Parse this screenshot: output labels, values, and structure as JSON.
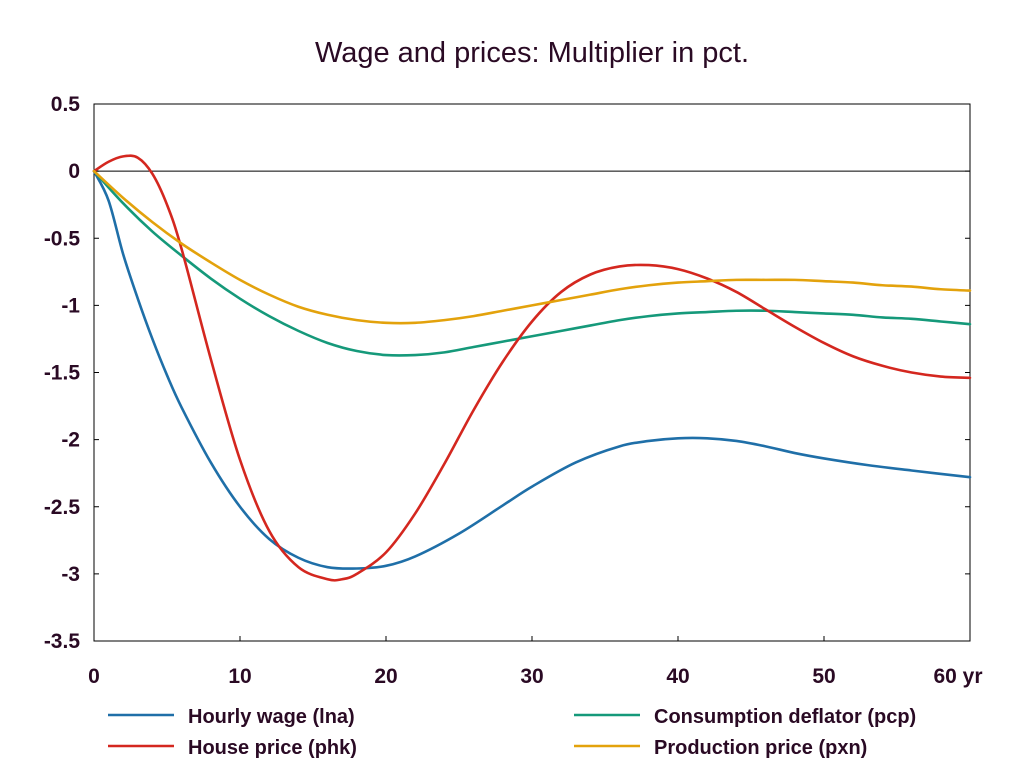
{
  "chart_data": {
    "type": "line",
    "title": "Wage and prices: Multiplier in pct.",
    "xlabel": "",
    "ylabel": "",
    "xlim": [
      0,
      60
    ],
    "ylim": [
      -3.5,
      0.5
    ],
    "x_ticks": [
      0,
      10,
      20,
      30,
      40,
      50,
      60
    ],
    "x_tick_labels": [
      "0",
      "10",
      "20",
      "30",
      "40",
      "50",
      "60 yr"
    ],
    "y_ticks": [
      0.5,
      0,
      -0.5,
      -1,
      -1.5,
      -2,
      -2.5,
      -3,
      -3.5
    ],
    "y_tick_labels": [
      "0.5",
      "0",
      "-0.5",
      "-1",
      "-1.5",
      "-2",
      "-2.5",
      "-3",
      "-3.5"
    ],
    "grid": false,
    "legend_position": "bottom",
    "series": [
      {
        "name": "Hourly wage (lna)",
        "color": "#1f6fa8",
        "x": [
          0,
          1,
          2,
          3,
          4,
          5,
          6,
          8,
          10,
          12,
          14,
          16,
          18,
          20,
          22,
          25,
          28,
          30,
          33,
          36,
          38,
          40,
          42,
          44,
          46,
          48,
          50,
          53,
          56,
          60
        ],
        "y": [
          0,
          -0.22,
          -0.62,
          -0.95,
          -1.25,
          -1.52,
          -1.76,
          -2.17,
          -2.5,
          -2.74,
          -2.88,
          -2.95,
          -2.96,
          -2.94,
          -2.87,
          -2.7,
          -2.49,
          -2.35,
          -2.17,
          -2.05,
          -2.01,
          -1.99,
          -1.99,
          -2.01,
          -2.05,
          -2.1,
          -2.14,
          -2.19,
          -2.23,
          -2.28
        ]
      },
      {
        "name": "Consumption deflator (pcp)",
        "color": "#15997a",
        "x": [
          0,
          2,
          4,
          6,
          8,
          10,
          12,
          14,
          16,
          18,
          20,
          22,
          24,
          26,
          28,
          30,
          33,
          36,
          38,
          40,
          42,
          44,
          46,
          48,
          50,
          52,
          54,
          56,
          58,
          60
        ],
        "y": [
          0,
          -0.24,
          -0.45,
          -0.63,
          -0.8,
          -0.95,
          -1.08,
          -1.19,
          -1.28,
          -1.34,
          -1.37,
          -1.37,
          -1.35,
          -1.31,
          -1.27,
          -1.23,
          -1.17,
          -1.11,
          -1.08,
          -1.06,
          -1.05,
          -1.04,
          -1.04,
          -1.05,
          -1.06,
          -1.07,
          -1.09,
          -1.1,
          -1.12,
          -1.14
        ]
      },
      {
        "name": "House price (phk)",
        "color": "#d4271f",
        "x": [
          0,
          1,
          2,
          3,
          4,
          5,
          6,
          8,
          10,
          12,
          14,
          16,
          17,
          18,
          20,
          22,
          24,
          26,
          28,
          30,
          32,
          34,
          36,
          38,
          40,
          42,
          44,
          46,
          48,
          50,
          52,
          54,
          56,
          58,
          60
        ],
        "y": [
          0,
          0.07,
          0.11,
          0.1,
          -0.02,
          -0.25,
          -0.58,
          -1.4,
          -2.15,
          -2.68,
          -2.95,
          -3.04,
          -3.04,
          -3.0,
          -2.84,
          -2.55,
          -2.18,
          -1.78,
          -1.42,
          -1.12,
          -0.9,
          -0.77,
          -0.71,
          -0.7,
          -0.73,
          -0.8,
          -0.9,
          -1.03,
          -1.16,
          -1.28,
          -1.38,
          -1.45,
          -1.5,
          -1.53,
          -1.54
        ]
      },
      {
        "name": "Production price (pxn)",
        "color": "#e3a20c",
        "x": [
          0,
          2,
          4,
          6,
          8,
          10,
          12,
          14,
          16,
          18,
          20,
          22,
          24,
          26,
          28,
          30,
          32,
          34,
          36,
          38,
          40,
          42,
          44,
          46,
          48,
          50,
          52,
          54,
          56,
          58,
          60
        ],
        "y": [
          0,
          -0.2,
          -0.38,
          -0.54,
          -0.68,
          -0.81,
          -0.92,
          -1.01,
          -1.07,
          -1.11,
          -1.13,
          -1.13,
          -1.11,
          -1.08,
          -1.04,
          -1.0,
          -0.96,
          -0.92,
          -0.88,
          -0.85,
          -0.83,
          -0.82,
          -0.81,
          -0.81,
          -0.81,
          -0.82,
          -0.83,
          -0.85,
          -0.86,
          -0.88,
          -0.89
        ]
      }
    ]
  }
}
